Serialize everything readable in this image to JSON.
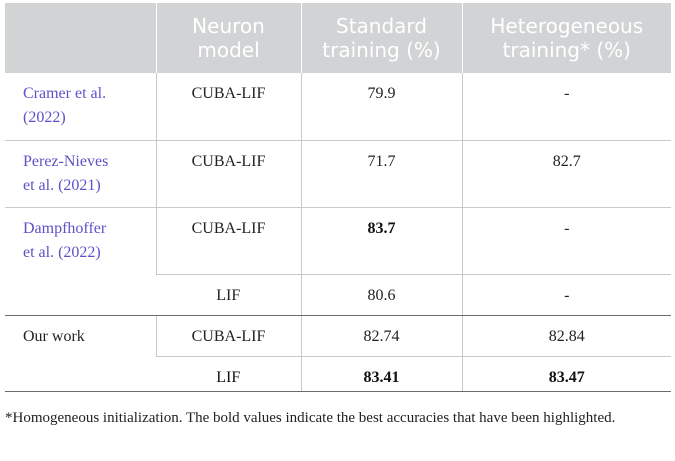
{
  "table": {
    "headers": [
      "",
      "Neuron model",
      "Standard training (%)",
      "Heterogeneous training* (%)"
    ],
    "rows": [
      {
        "study_line1": "Cramer et al.",
        "study_line2": "(2022)",
        "model": "CUBA-LIF",
        "standard": "79.9",
        "heterogeneous": "-"
      },
      {
        "study_line1": "Perez-Nieves",
        "study_line2": "et al. (2021)",
        "model": "CUBA-LIF",
        "standard": "71.7",
        "heterogeneous": "82.7"
      },
      {
        "study_line1": "Dampfhoffer",
        "study_line2": "et al. (2022)",
        "model": "CUBA-LIF",
        "standard": "83.7",
        "heterogeneous": "-"
      },
      {
        "study_line1": "",
        "study_line2": "",
        "model": "LIF",
        "standard": "80.6",
        "heterogeneous": "-"
      },
      {
        "study_line1": "Our work",
        "study_line2": "",
        "model": "CUBA-LIF",
        "standard": "82.74",
        "heterogeneous": "82.84"
      },
      {
        "study_line1": "",
        "study_line2": "",
        "model": "LIF",
        "standard": "83.41",
        "heterogeneous": "83.47"
      }
    ]
  },
  "footnote": "*Homogeneous initialization. The bold values indicate the best accuracies that have been highlighted.",
  "colors": {
    "header_bg": "#d1d3d4",
    "header_text": "#ffffff",
    "citation": "#5b53c7"
  }
}
